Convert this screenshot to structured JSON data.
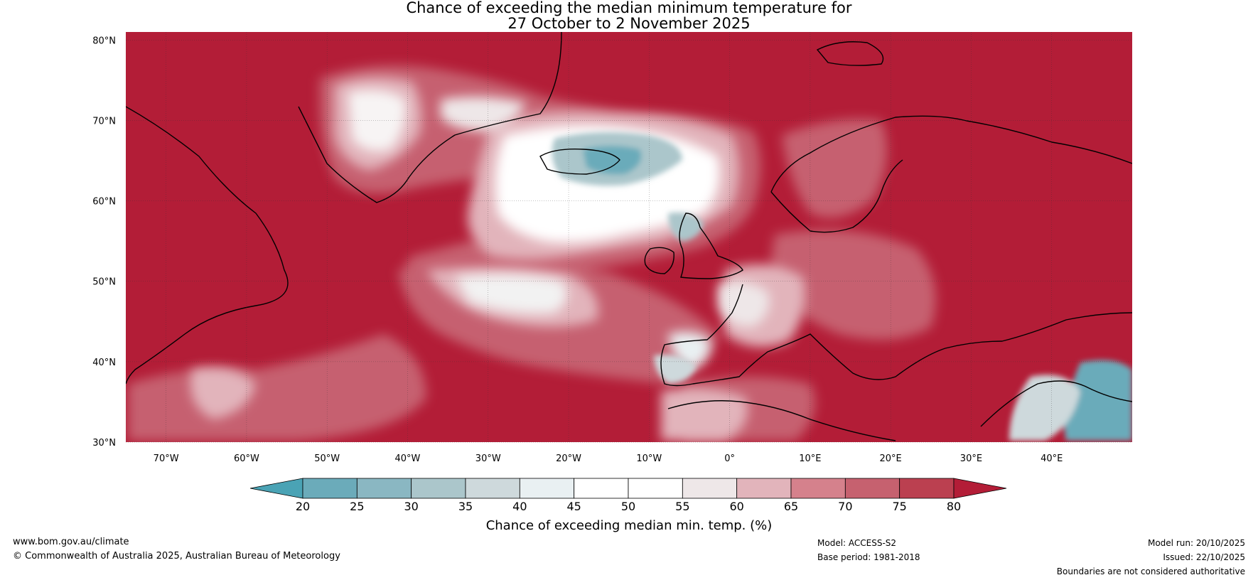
{
  "title": {
    "line1": "Chance of exceeding the median minimum temperature for",
    "line2": "27 October to 2 November 2025"
  },
  "map": {
    "lon_range": [
      -75,
      50
    ],
    "lat_range": [
      30,
      81
    ],
    "lat_ticks": [
      {
        "value": 80,
        "label": "80°N"
      },
      {
        "value": 70,
        "label": "70°N"
      },
      {
        "value": 60,
        "label": "60°N"
      },
      {
        "value": 50,
        "label": "50°N"
      },
      {
        "value": 40,
        "label": "40°N"
      },
      {
        "value": 30,
        "label": "30°N"
      }
    ],
    "lon_ticks": [
      {
        "value": -70,
        "label": "70°W"
      },
      {
        "value": -60,
        "label": "60°W"
      },
      {
        "value": -50,
        "label": "50°W"
      },
      {
        "value": -40,
        "label": "40°W"
      },
      {
        "value": -30,
        "label": "30°W"
      },
      {
        "value": -20,
        "label": "20°W"
      },
      {
        "value": -10,
        "label": "10°W"
      },
      {
        "value": 0,
        "label": "0°"
      },
      {
        "value": 10,
        "label": "10°E"
      },
      {
        "value": 20,
        "label": "20°E"
      },
      {
        "value": 30,
        "label": "30°E"
      },
      {
        "value": 40,
        "label": "40°E"
      }
    ]
  },
  "colorbar": {
    "label": "Chance of exceeding median min. temp. (%)",
    "ticks": [
      "20",
      "25",
      "30",
      "35",
      "40",
      "45",
      "50",
      "55",
      "60",
      "65",
      "70",
      "75",
      "80"
    ],
    "colors": [
      "#4aa3b5",
      "#6babba",
      "#8ab7c2",
      "#abc6cb",
      "#ced9dc",
      "#e9f0f2",
      "#ffffff",
      "#ffffff",
      "#eee7e8",
      "#e2b4bb",
      "#d5818c",
      "#c6616f",
      "#bb4050",
      "#b31d37"
    ]
  },
  "footer": {
    "website": "www.bom.gov.au/climate",
    "copyright": "© Commonwealth of Australia 2025, Australian Bureau of Meteorology",
    "model": "Model: ACCESS-S2",
    "base_period": "Base period: 1981-2018",
    "model_run": "Model run: 20/10/2025",
    "issued": "Issued: 22/10/2025",
    "boundaries": "Boundaries are not considered authoritative"
  }
}
